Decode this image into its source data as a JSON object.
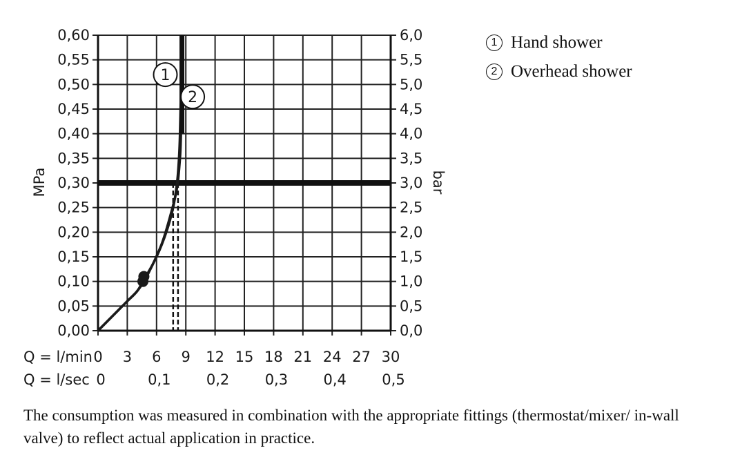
{
  "chart_data": {
    "type": "line",
    "left_axis": {
      "label": "MPa",
      "min": 0,
      "max": 0.6,
      "ticks": [
        "0,00",
        "0,05",
        "0,10",
        "0,15",
        "0,20",
        "0,25",
        "0,30",
        "0,35",
        "0,40",
        "0,45",
        "0,50",
        "0,55",
        "0,60"
      ]
    },
    "right_axis": {
      "label": "bar",
      "min": 0,
      "max": 6,
      "ticks": [
        "0,0",
        "0,5",
        "1,0",
        "1,5",
        "2,0",
        "2,5",
        "3,0",
        "3,5",
        "4,0",
        "4,5",
        "5,0",
        "5,5",
        "6,0"
      ]
    },
    "x_axis_lmin": {
      "label": "Q = l/min",
      "min": 0,
      "max": 30,
      "ticks": [
        "0",
        "3",
        "6",
        "9",
        "12",
        "15",
        "18",
        "21",
        "24",
        "27",
        "30"
      ]
    },
    "x_axis_lsec": {
      "label": "Q = l/sec",
      "ticks": [
        "0",
        "0,1",
        "0,2",
        "0,3",
        "0,4",
        "0,5"
      ]
    },
    "grid": true,
    "reference_line_mpa": 0.3,
    "series": [
      {
        "marker": "1",
        "name": "Hand shower",
        "x": [
          0,
          2,
          3,
          4,
          4.9,
          6,
          7,
          7.7,
          8.1,
          8.3,
          8.4,
          8.5,
          8.5
        ],
        "y": [
          0,
          0.04,
          0.06,
          0.08,
          0.11,
          0.15,
          0.2,
          0.25,
          0.3,
          0.35,
          0.4,
          0.5,
          0.6
        ],
        "point": {
          "x": 4.7,
          "y": 0.11
        },
        "measured_flow_lmin": 7.7
      },
      {
        "marker": "2",
        "name": "Overhead shower",
        "x": [
          0,
          2,
          3,
          4,
          4.7,
          5.5,
          6.6,
          7.5,
          8.1,
          8.4,
          8.5,
          8.6,
          8.7
        ],
        "y": [
          0,
          0.04,
          0.06,
          0.08,
          0.1,
          0.13,
          0.18,
          0.24,
          0.29,
          0.35,
          0.4,
          0.5,
          0.6
        ],
        "point": {
          "x": 4.6,
          "y": 0.1
        },
        "measured_flow_lmin": 8.2
      }
    ]
  },
  "legend": [
    {
      "num": "1",
      "label": "Hand shower"
    },
    {
      "num": "2",
      "label": "Overhead shower"
    }
  ],
  "caption": "The consumption was measured in combination with the appropriate fittings (thermostat/mixer/ in-wall valve) to reflect actual application in practice."
}
